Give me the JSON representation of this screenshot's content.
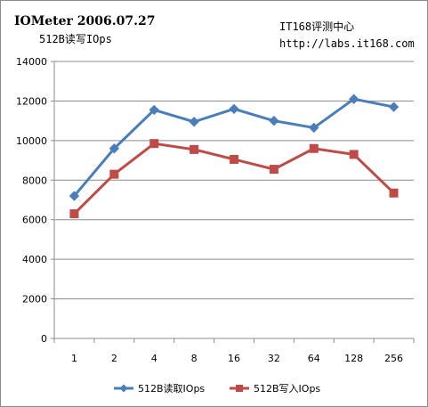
{
  "chart_data": {
    "type": "line",
    "title": "IOMeter 2006.07.27",
    "subtitle": "512B读写IOps",
    "annotation_lines": [
      "IT168评测中心",
      "http://labs.it168.com"
    ],
    "categories": [
      "1",
      "2",
      "4",
      "8",
      "16",
      "32",
      "64",
      "128",
      "256"
    ],
    "ylim": [
      0,
      14000
    ],
    "yticks": [
      0,
      2000,
      4000,
      6000,
      8000,
      10000,
      12000,
      14000
    ],
    "xlabel": "",
    "ylabel": "",
    "grid": "horizontal",
    "legend_position": "bottom",
    "series": [
      {
        "name": "512B读取IOps",
        "color": "#4a7ebb",
        "marker": "diamond",
        "values": [
          7200,
          9600,
          11550,
          10950,
          11600,
          11000,
          10650,
          12100,
          11700
        ]
      },
      {
        "name": "512B写入IOps",
        "color": "#be4b48",
        "marker": "square",
        "values": [
          6300,
          8300,
          9850,
          9550,
          9050,
          8550,
          9600,
          9300,
          7350
        ]
      }
    ]
  }
}
